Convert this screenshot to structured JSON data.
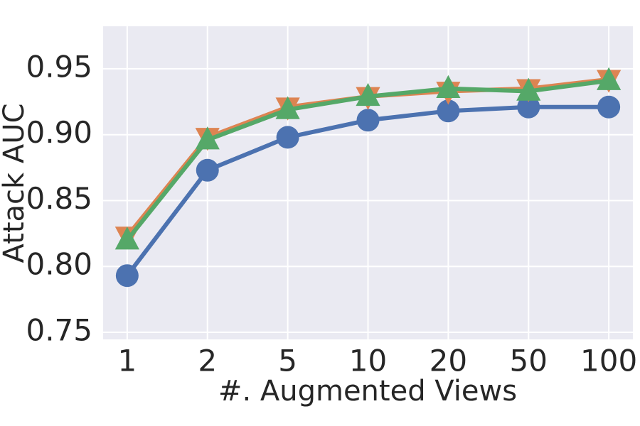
{
  "chart_data": {
    "type": "line",
    "x_label": "#. Augmented Views",
    "y_label": "Attack AUC",
    "categories": [
      "1",
      "2",
      "5",
      "10",
      "20",
      "50",
      "100"
    ],
    "series": [
      {
        "color": "#4c72b0",
        "marker": "o",
        "values": [
          0.793,
          0.873,
          0.898,
          0.911,
          0.918,
          0.921,
          0.921
        ]
      },
      {
        "color": "#dd8452",
        "marker": "v",
        "values": [
          0.823,
          0.898,
          0.921,
          0.929,
          0.933,
          0.935,
          0.942
        ]
      },
      {
        "color": "#55a868",
        "marker": "^",
        "values": [
          0.82,
          0.896,
          0.919,
          0.929,
          0.935,
          0.933,
          0.941
        ]
      }
    ],
    "ylim": [
      0.7446,
      0.9823
    ],
    "yticks": [
      0.75,
      {
        "value": 0.8,
        "label": "0.80"
      },
      0.85,
      {
        "value": 0.9,
        "label": "0.90"
      },
      0.95
    ],
    "grid": true,
    "background": "#eaeaf2"
  }
}
